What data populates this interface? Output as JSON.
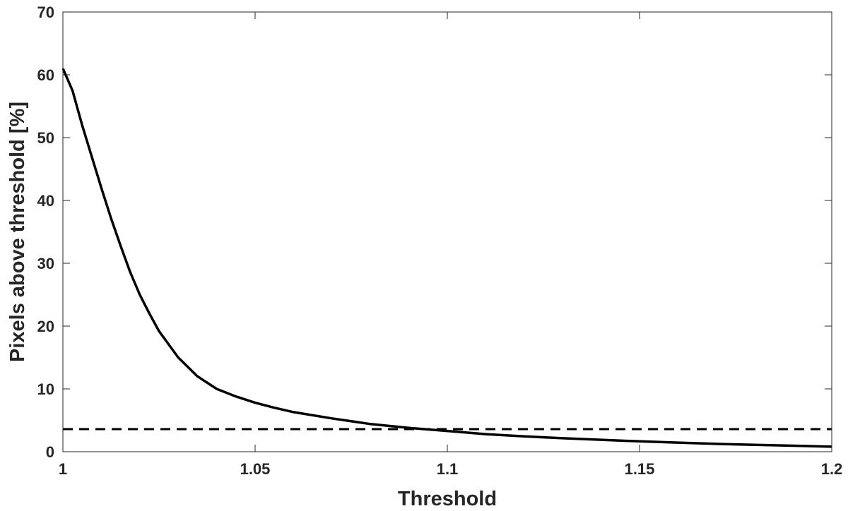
{
  "chart_data": {
    "type": "line",
    "title": "",
    "xlabel": "Threshold",
    "ylabel": "Pixels above threshold [%]",
    "xlim": [
      1.0,
      1.2
    ],
    "ylim": [
      0,
      70
    ],
    "x_ticks": [
      1.0,
      1.05,
      1.1,
      1.15,
      1.2
    ],
    "x_tick_labels": [
      "1",
      "1.05",
      "1.1",
      "1.15",
      "1.2"
    ],
    "y_ticks": [
      0,
      10,
      20,
      30,
      40,
      50,
      60,
      70
    ],
    "y_tick_labels": [
      "0",
      "10",
      "20",
      "30",
      "40",
      "50",
      "60",
      "70"
    ],
    "grid": false,
    "series": [
      {
        "style": "solid",
        "color": "#000000",
        "x": [
          1.0,
          1.0025,
          1.005,
          1.0075,
          1.01,
          1.0125,
          1.015,
          1.0175,
          1.02,
          1.0225,
          1.025,
          1.03,
          1.035,
          1.04,
          1.045,
          1.05,
          1.055,
          1.06,
          1.07,
          1.08,
          1.09,
          1.1,
          1.11,
          1.12,
          1.13,
          1.14,
          1.15,
          1.16,
          1.17,
          1.18,
          1.19,
          1.2
        ],
        "y": [
          61.0,
          57.5,
          52.0,
          47.0,
          42.0,
          37.2,
          32.8,
          28.6,
          25.0,
          22.0,
          19.2,
          15.0,
          12.0,
          10.0,
          8.8,
          7.8,
          7.0,
          6.3,
          5.3,
          4.4,
          3.8,
          3.3,
          2.8,
          2.45,
          2.15,
          1.9,
          1.65,
          1.45,
          1.25,
          1.1,
          0.95,
          0.8
        ]
      },
      {
        "style": "dashed",
        "color": "#000000",
        "x": [
          1.0,
          1.2
        ],
        "y": [
          3.6,
          3.6
        ]
      }
    ]
  }
}
